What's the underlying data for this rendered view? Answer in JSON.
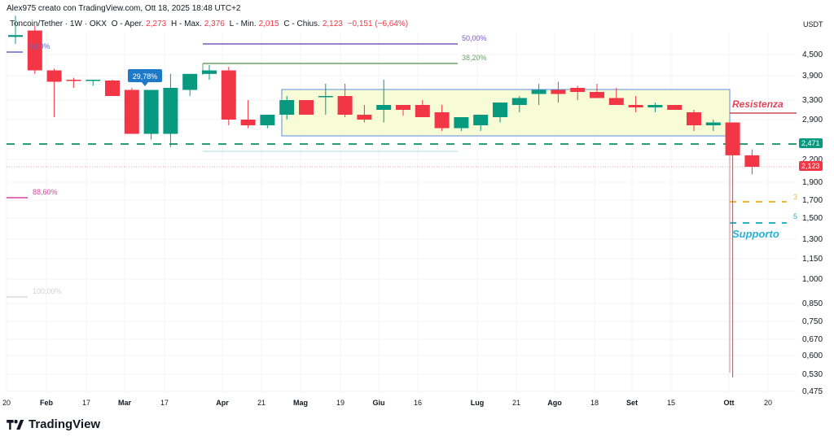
{
  "header": {
    "credit": "Alex975 creato con TradingView.com, Ott 18, 2025 18:48 UTC+2"
  },
  "legend": {
    "symbol": "Toncoin/Tether · 1W · OKX",
    "open_label": "O - Aper.",
    "open": "2,273",
    "high_label": "H - Max.",
    "high": "2,376",
    "low_label": "L - Min.",
    "low": "2,015",
    "close_label": "C - Chius.",
    "close": "2,123",
    "change": "−0,151 (−6,64%)"
  },
  "price_axis": {
    "unit": "USDT",
    "ticks": [
      "4,500",
      "3,900",
      "3,300",
      "2,900",
      "2,200",
      "1,900",
      "1,700",
      "1,500",
      "1,300",
      "1,150",
      "1,000",
      "0,850",
      "0,750",
      "0,670",
      "0,600",
      "0,530",
      "0,475"
    ],
    "tags": [
      {
        "label": "2,471",
        "color": "#089981"
      },
      {
        "label": "2,123",
        "color": "#f23645"
      }
    ]
  },
  "time_axis": {
    "labels": [
      {
        "text": "20",
        "bold": false
      },
      {
        "text": "Feb",
        "bold": true
      },
      {
        "text": "17",
        "bold": false
      },
      {
        "text": "Mar",
        "bold": true
      },
      {
        "text": "17",
        "bold": false
      },
      {
        "text": "Apr",
        "bold": true
      },
      {
        "text": "21",
        "bold": false
      },
      {
        "text": "Mag",
        "bold": true
      },
      {
        "text": "19",
        "bold": false
      },
      {
        "text": "Giu",
        "bold": true
      },
      {
        "text": "16",
        "bold": false
      },
      {
        "text": "Lug",
        "bold": true
      },
      {
        "text": "21",
        "bold": false
      },
      {
        "text": "Ago",
        "bold": true
      },
      {
        "text": "18",
        "bold": false
      },
      {
        "text": "Set",
        "bold": true
      },
      {
        "text": "15",
        "bold": false
      },
      {
        "text": "Ott",
        "bold": true
      },
      {
        "text": "20",
        "bold": false
      }
    ]
  },
  "annotations": {
    "resistance": "Resistenza",
    "support": "Supporto",
    "callout": "29,78%",
    "fib_0": "0,00%",
    "fib_382": "38,20%",
    "fib_50": "50,00%",
    "fib_886": "88,60%",
    "fib_100": "100,00%",
    "mark_3": "3",
    "mark_5": "5"
  },
  "brand": {
    "name": "TradingView"
  },
  "colors": {
    "up": "#089981",
    "down": "#f23645",
    "range_fill": "#f7fcd6",
    "range_border": "#5b8ed6",
    "support": "#2bb0d6",
    "resistance": "#c84b55"
  },
  "chart_data": {
    "type": "candlestick",
    "title": "Toncoin/Tether · 1W · OKX",
    "xlabel": "",
    "ylabel": "USDT",
    "y_scale": "log",
    "ylim": [
      0.475,
      5.2
    ],
    "x": [
      "2025-01-13",
      "2025-01-20",
      "2025-01-27",
      "2025-02-03",
      "2025-02-10",
      "2025-02-17",
      "2025-02-24",
      "2025-03-03",
      "2025-03-10",
      "2025-03-17",
      "2025-03-24",
      "2025-03-31",
      "2025-04-07",
      "2025-04-14",
      "2025-04-21",
      "2025-04-28",
      "2025-05-05",
      "2025-05-12",
      "2025-05-19",
      "2025-05-26",
      "2025-06-02",
      "2025-06-09",
      "2025-06-16",
      "2025-06-23",
      "2025-06-30",
      "2025-07-07",
      "2025-07-14",
      "2025-07-21",
      "2025-07-28",
      "2025-08-04",
      "2025-08-11",
      "2025-08-18",
      "2025-08-25",
      "2025-09-01",
      "2025-09-08",
      "2025-09-15",
      "2025-09-22",
      "2025-09-29",
      "2025-10-06"
    ],
    "series": [
      {
        "name": "open",
        "values": [
          5.0,
          5.18,
          4.05,
          3.8,
          3.78,
          3.78,
          3.55,
          2.65,
          2.65,
          3.55,
          3.95,
          4.05,
          2.9,
          2.8,
          3.0,
          3.3,
          3.4,
          3.4,
          3.0,
          3.1,
          3.2,
          3.2,
          3.05,
          2.75,
          2.8,
          2.95,
          3.2,
          3.45,
          3.55,
          3.6,
          3.5,
          3.35,
          3.2,
          3.15,
          3.2,
          3.05,
          2.8,
          2.85,
          2.273
        ]
      },
      {
        "name": "high",
        "values": [
          5.6,
          5.3,
          4.1,
          3.85,
          3.8,
          3.8,
          3.6,
          2.7,
          3.95,
          3.9,
          4.2,
          4.15,
          3.3,
          2.95,
          3.4,
          3.3,
          3.7,
          3.7,
          3.2,
          3.8,
          3.2,
          3.3,
          3.2,
          2.95,
          2.9,
          3.15,
          3.4,
          3.7,
          3.75,
          3.65,
          3.7,
          3.6,
          3.4,
          3.25,
          3.2,
          3.1,
          2.9,
          2.85,
          2.376
        ]
      },
      {
        "name": "low",
        "values": [
          4.8,
          3.95,
          2.95,
          3.6,
          3.65,
          3.55,
          3.1,
          2.55,
          2.42,
          3.4,
          3.8,
          2.8,
          2.75,
          2.75,
          2.9,
          3.0,
          3.0,
          2.95,
          2.85,
          2.85,
          2.98,
          2.95,
          2.7,
          2.7,
          2.7,
          2.85,
          3.05,
          3.2,
          3.25,
          3.3,
          3.4,
          3.25,
          3.05,
          3.05,
          3.1,
          2.7,
          2.7,
          0.52,
          2.015
        ]
      },
      {
        "name": "close",
        "values": [
          5.05,
          4.05,
          3.75,
          3.78,
          3.8,
          3.4,
          2.65,
          3.55,
          3.6,
          3.95,
          4.05,
          2.9,
          2.8,
          3.0,
          3.3,
          3.0,
          3.4,
          3.0,
          2.9,
          3.2,
          3.1,
          2.95,
          2.75,
          2.95,
          3.0,
          3.25,
          3.35,
          3.55,
          3.45,
          3.5,
          3.35,
          3.2,
          3.15,
          3.2,
          3.1,
          2.8,
          2.85,
          2.273,
          2.123
        ]
      }
    ],
    "levels": [
      {
        "name": "Resistenza",
        "value": 3.03
      },
      {
        "name": "2,471 dashed",
        "value": 2.471
      },
      {
        "name": "Supporto",
        "value": 1.47
      },
      {
        "name": "3 (yellow dashed)",
        "value": 1.68
      },
      {
        "name": "range box top",
        "value": 3.6
      },
      {
        "name": "range box bottom",
        "value": 2.68
      }
    ],
    "legend": []
  }
}
